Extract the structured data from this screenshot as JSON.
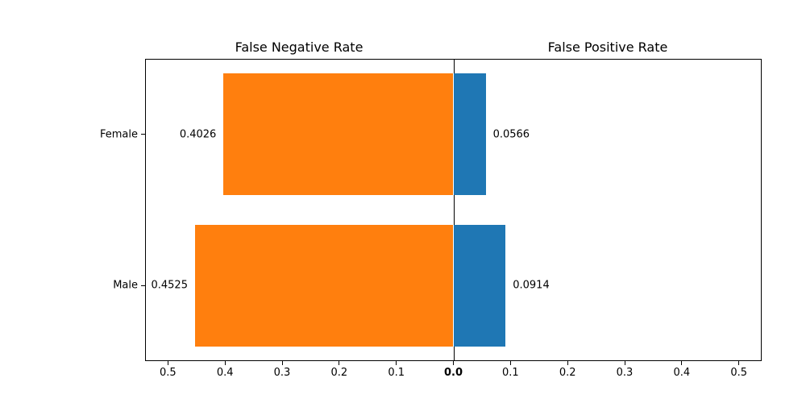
{
  "chart_data": {
    "type": "bar",
    "variant": "diverging-horizontal",
    "titles": {
      "left": "False Negative Rate",
      "right": "False Positive Rate"
    },
    "categories": [
      "Female",
      "Male"
    ],
    "series": [
      {
        "name": "False Negative Rate",
        "side": "left",
        "color": "#ff7f0e",
        "values": [
          0.4026,
          0.4525
        ]
      },
      {
        "name": "False Positive Rate",
        "side": "right",
        "color": "#1f77b4",
        "values": [
          0.0566,
          0.0914
        ]
      }
    ],
    "value_labels": {
      "left": [
        "0.4026",
        "0.4525"
      ],
      "right": [
        "0.0566",
        "0.0914"
      ]
    },
    "x_axis": {
      "tick_values": [
        0.5,
        0.4,
        0.3,
        0.2,
        0.1
      ],
      "tick_labels_left": [
        "0.5",
        "0.4",
        "0.3",
        "0.2",
        "0.1"
      ],
      "center_label": "0.0",
      "tick_labels_right": [
        "0.1",
        "0.2",
        "0.3",
        "0.4",
        "0.5"
      ],
      "xlim": 0.54,
      "tick_interval": 0.1
    },
    "grid": false,
    "legend": "none",
    "background_color": "#ffffff",
    "axis_color": "#000000"
  }
}
